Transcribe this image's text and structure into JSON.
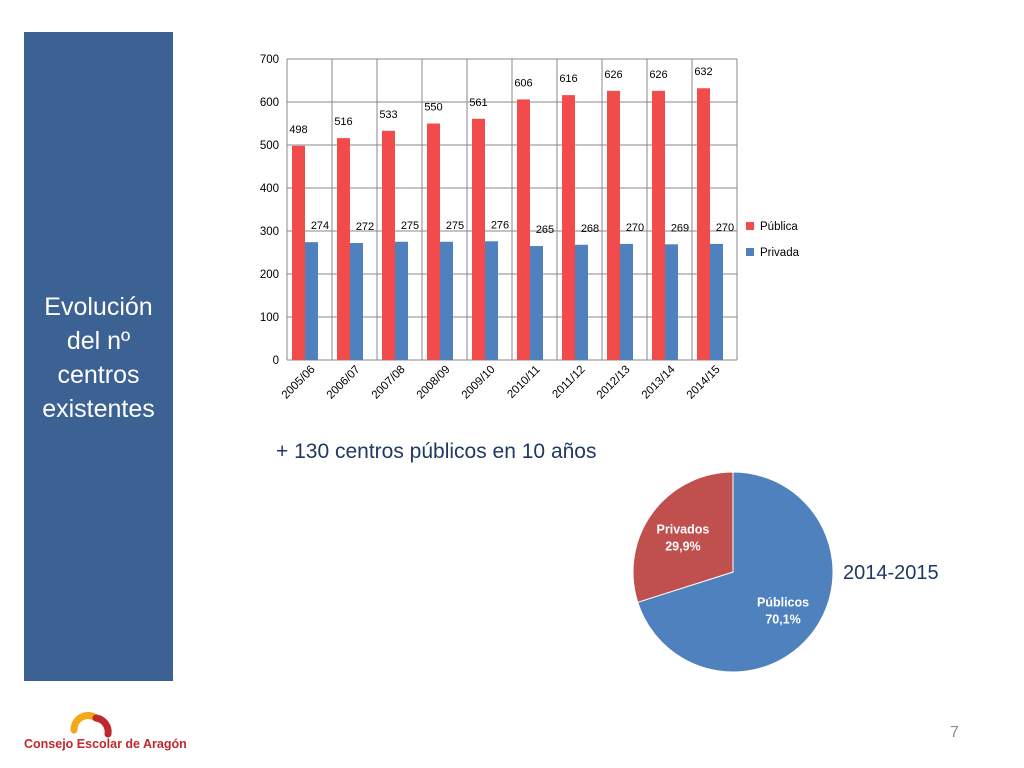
{
  "side_title": {
    "line1": "Evolución",
    "line2": "del nº",
    "line3": "centros",
    "line4": "existentes"
  },
  "subtitle": "+ 130 centros públicos en 10 años",
  "pie_year": "2014-2015",
  "logo_text": "Consejo Escolar de Aragón",
  "page_number": "7",
  "chart_data": [
    {
      "type": "bar",
      "categories": [
        "2005/06",
        "2006/07",
        "2007/08",
        "2008/09",
        "2009/10",
        "2010/11",
        "2011/12",
        "2012/13",
        "2013/14",
        "2014/15"
      ],
      "series": [
        {
          "name": "Pública",
          "color": "#f24b4b",
          "values": [
            498,
            516,
            533,
            550,
            561,
            606,
            616,
            626,
            626,
            632
          ]
        },
        {
          "name": "Privada",
          "color": "#4e81bd",
          "values": [
            274,
            272,
            275,
            275,
            276,
            265,
            268,
            270,
            269,
            270
          ]
        }
      ],
      "ylim": [
        0,
        700
      ],
      "yticks": [
        0,
        100,
        200,
        300,
        400,
        500,
        600,
        700
      ],
      "grid": true,
      "legend": "right"
    },
    {
      "type": "pie",
      "slices": [
        {
          "label": "Públicos",
          "value_label": "70,1%",
          "value": 70.1,
          "color": "#4e81bd"
        },
        {
          "label": "Privados",
          "value_label": "29,9%",
          "value": 29.9,
          "color": "#c0504d"
        }
      ]
    }
  ]
}
